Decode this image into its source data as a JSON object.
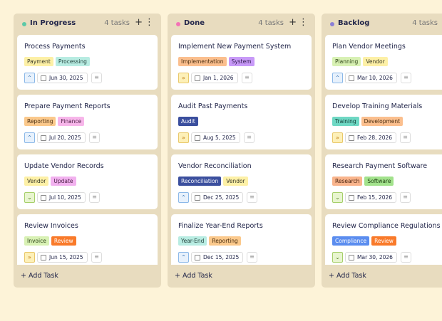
{
  "columns": [
    {
      "title": "In Progress",
      "dot_color": "#5cc9a7",
      "count": "4 tasks",
      "add": "Add Task",
      "cards": [
        {
          "title": "Process Payments",
          "date": "Jun 30, 2025",
          "tags": [
            {
              "label": "Payment",
              "color": "#fdf0a6",
              "text_color": "#3a3a2a"
            },
            {
              "label": "Processing",
              "color": "#b8ece2",
              "text_color": "#22413b"
            }
          ]
        },
        {
          "title": "Prepare Payment Reports",
          "date": "Jul 20, 2025",
          "tags": [
            {
              "label": "Reporting",
              "color": "#fbc98c",
              "text_color": "#4a2e10"
            },
            {
              "label": "Finance",
              "color": "#f7b6ea",
              "text_color": "#4a1f44"
            }
          ]
        },
        {
          "title": "Update Vendor Records",
          "date": "Jul 10, 2025",
          "tags": [
            {
              "label": "Vendor",
              "color": "#fdf0a6",
              "text_color": "#3a3a2a"
            },
            {
              "label": "Update",
              "color": "#f2b1ef",
              "text_color": "#4a1f44"
            }
          ]
        },
        {
          "title": "Review Invoices",
          "date": "Jun 15, 2025",
          "tags": [
            {
              "label": "Invoice",
              "color": "#d8f1b4",
              "text_color": "#2e4418"
            },
            {
              "label": "Review",
              "color": "#f97a2a",
              "text_color": "#ffffff"
            }
          ]
        }
      ]
    },
    {
      "title": "Done",
      "dot_color": "#f472b6",
      "count": "4 tasks",
      "add": "Add Task",
      "cards": [
        {
          "title": "Implement New Payment System",
          "date": "Jan 1, 2026",
          "tags": [
            {
              "label": "Implementation",
              "color": "#fbbf8e",
              "text_color": "#4a2e10"
            },
            {
              "label": "System",
              "color": "#c89af8",
              "text_color": "#2e1a4a"
            }
          ]
        },
        {
          "title": "Audit Past Payments",
          "date": "Aug 5, 2025",
          "tags": [
            {
              "label": "Audit",
              "color": "#3b4f9e",
              "text_color": "#ffffff"
            }
          ]
        },
        {
          "title": "Vendor Reconciliation",
          "date": "Dec 25, 2025",
          "tags": [
            {
              "label": "Reconciliation",
              "color": "#3b4f9e",
              "text_color": "#ffffff"
            },
            {
              "label": "Vendor",
              "color": "#fdf0a6",
              "text_color": "#3a3a2a"
            }
          ]
        },
        {
          "title": "Finalize Year-End Reports",
          "date": "Dec 15, 2025",
          "tags": [
            {
              "label": "Year-End",
              "color": "#b8ece2",
              "text_color": "#22413b"
            },
            {
              "label": "Reporting",
              "color": "#fbc98c",
              "text_color": "#4a2e10"
            }
          ]
        }
      ]
    },
    {
      "title": "Backlog",
      "dot_color": "#8b7fd6",
      "count": "4 tasks",
      "add": "Add Task",
      "cards": [
        {
          "title": "Plan Vendor Meetings",
          "date": "Mar 10, 2026",
          "tags": [
            {
              "label": "Planning",
              "color": "#d8f1b4",
              "text_color": "#2e4418"
            },
            {
              "label": "Vendor",
              "color": "#fdf0a6",
              "text_color": "#3a3a2a"
            }
          ]
        },
        {
          "title": "Develop Training Materials",
          "date": "Feb 28, 2026",
          "tags": [
            {
              "label": "Training",
              "color": "#6fd8c4",
              "text_color": "#123a33"
            },
            {
              "label": "Development",
              "color": "#fbbf8e",
              "text_color": "#4a2e10"
            }
          ]
        },
        {
          "title": "Research Payment Software",
          "date": "Feb 15, 2026",
          "tags": [
            {
              "label": "Research",
              "color": "#f9b48c",
              "text_color": "#4a2410"
            },
            {
              "label": "Software",
              "color": "#a2e28c",
              "text_color": "#1f3e12"
            }
          ]
        },
        {
          "title": "Review Compliance Regulations",
          "date": "Mar 30, 2026",
          "tags": [
            {
              "label": "Compliance",
              "color": "#5b8def",
              "text_color": "#ffffff"
            },
            {
              "label": "Review",
              "color": "#f97a2a",
              "text_color": "#ffffff"
            }
          ]
        }
      ]
    }
  ]
}
